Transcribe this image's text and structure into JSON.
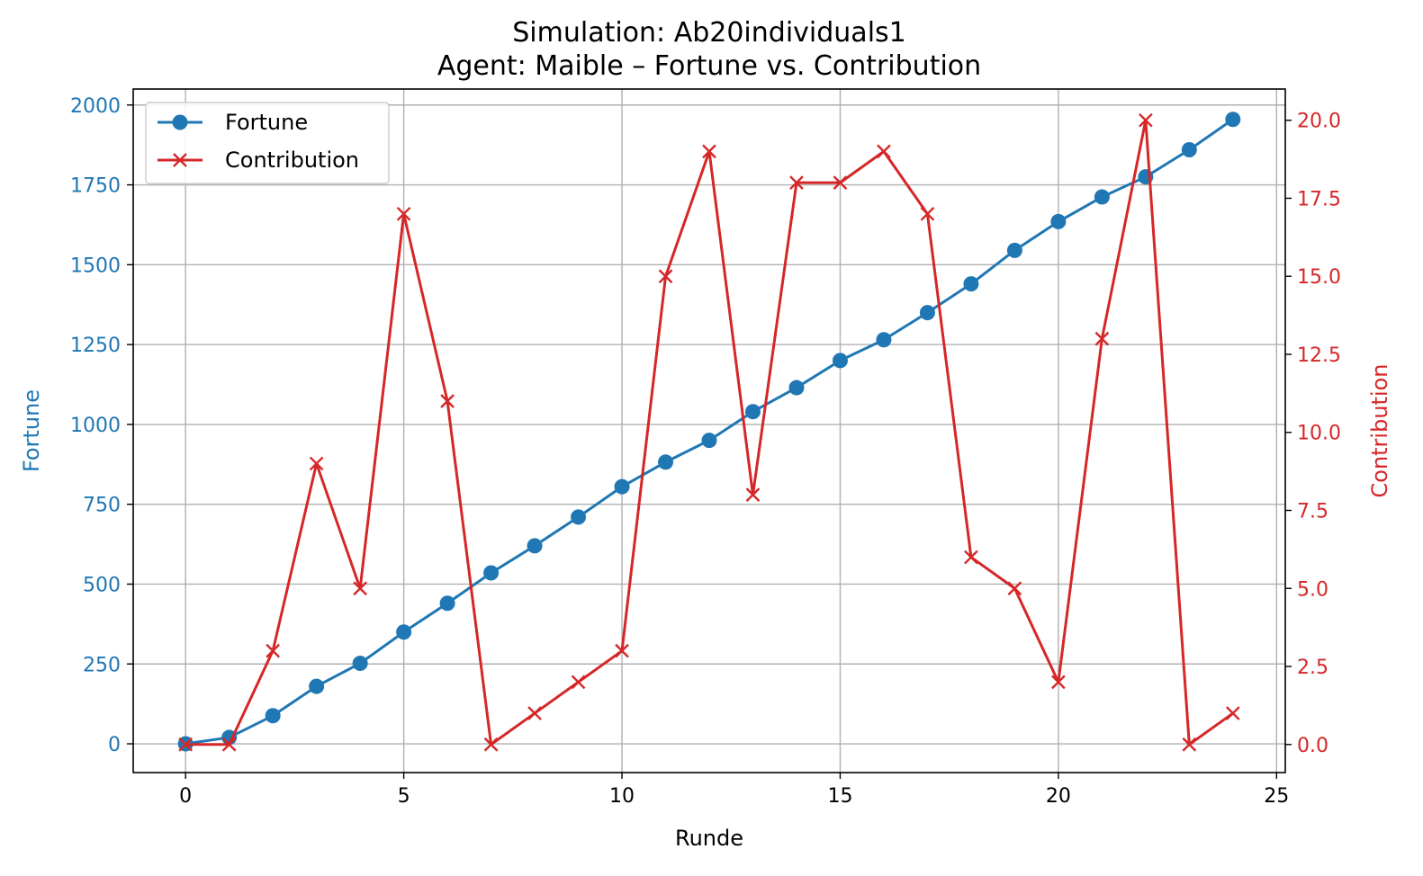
{
  "chart_data": {
    "type": "line",
    "title": "Simulation: Ab20individuals1",
    "subtitle": "Agent: Maible – Fortune vs. Contribution",
    "xlabel": "Runde",
    "ylabel_left": "Fortune",
    "ylabel_right": "Contribution",
    "xlim": [
      -1.2,
      25.2
    ],
    "ylim_left": [
      -90,
      2050
    ],
    "ylim_right": [
      -0.9,
      21.0
    ],
    "x_ticks": [
      0,
      5,
      10,
      15,
      20,
      25
    ],
    "y_left_ticks": [
      0,
      250,
      500,
      750,
      1000,
      1250,
      1500,
      1750,
      2000
    ],
    "y_right_ticks": [
      0.0,
      2.5,
      5.0,
      7.5,
      10.0,
      12.5,
      15.0,
      17.5,
      20.0
    ],
    "grid": true,
    "legend_position": "top-left",
    "colors": {
      "fortune": "#1f77b4",
      "contribution": "#d62728"
    },
    "x": [
      0,
      1,
      2,
      3,
      4,
      5,
      6,
      7,
      8,
      9,
      10,
      11,
      12,
      13,
      14,
      15,
      16,
      17,
      18,
      19,
      20,
      21,
      22,
      23,
      24
    ],
    "series": [
      {
        "name": "Fortune",
        "axis": "left",
        "marker": "circle",
        "values": [
          0,
          20,
          88,
          180,
          252,
          350,
          440,
          535,
          620,
          710,
          805,
          882,
          950,
          1040,
          1115,
          1200,
          1265,
          1350,
          1440,
          1545,
          1635,
          1712,
          1775,
          1860,
          1955
        ]
      },
      {
        "name": "Contribution",
        "axis": "right",
        "marker": "x",
        "values": [
          0,
          0,
          3,
          9,
          5,
          17,
          11,
          0,
          1,
          2,
          3,
          15,
          19,
          8,
          18,
          18,
          19,
          17,
          6,
          5,
          2,
          13,
          20,
          0,
          1
        ]
      }
    ]
  }
}
